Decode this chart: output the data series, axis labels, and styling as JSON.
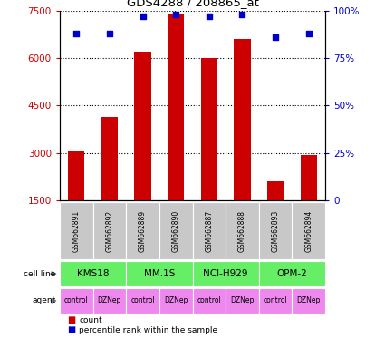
{
  "title": "GDS4288 / 208865_at",
  "samples": [
    "GSM662891",
    "GSM662892",
    "GSM662889",
    "GSM662890",
    "GSM662887",
    "GSM662888",
    "GSM662893",
    "GSM662894"
  ],
  "counts": [
    3050,
    4150,
    6200,
    7400,
    6000,
    6600,
    2100,
    2950
  ],
  "percentile_ranks": [
    88,
    88,
    97,
    98,
    97,
    98,
    86,
    88
  ],
  "cell_lines": [
    {
      "label": "KMS18",
      "span": [
        0,
        2
      ]
    },
    {
      "label": "MM.1S",
      "span": [
        2,
        4
      ]
    },
    {
      "label": "NCI-H929",
      "span": [
        4,
        6
      ]
    },
    {
      "label": "OPM-2",
      "span": [
        6,
        8
      ]
    }
  ],
  "agents": [
    "control",
    "DZNep",
    "control",
    "DZNep",
    "control",
    "DZNep",
    "control",
    "DZNep"
  ],
  "bar_color": "#cc0000",
  "dot_color": "#0000cc",
  "cell_line_color": "#66ee66",
  "agent_color": "#ee88ee",
  "sample_bg_color": "#c8c8c8",
  "ylim_left": [
    1500,
    7500
  ],
  "yticks_left": [
    1500,
    3000,
    4500,
    6000,
    7500
  ],
  "ylim_right": [
    0,
    100
  ],
  "yticks_right": [
    0,
    25,
    50,
    75,
    100
  ],
  "bar_width": 0.5
}
